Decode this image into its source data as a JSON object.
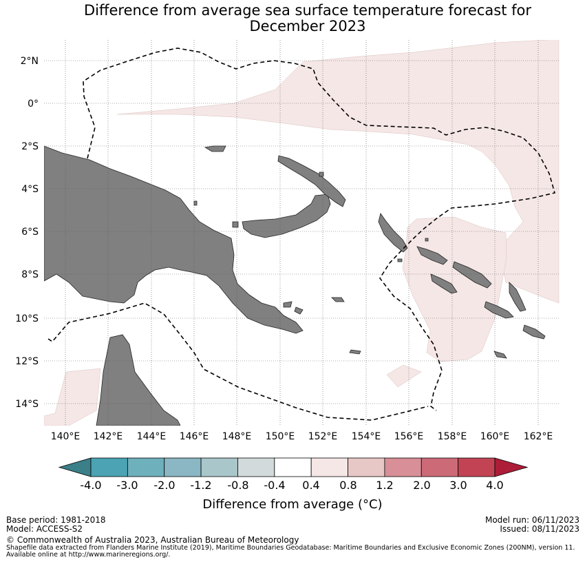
{
  "title": {
    "line1": "Difference from average sea surface temperature forecast for",
    "line2": "December 2023"
  },
  "map": {
    "lat_labels": [
      "2°N",
      "0°",
      "2°S",
      "4°S",
      "6°S",
      "8°S",
      "10°S",
      "12°S",
      "14°S"
    ],
    "lon_labels": [
      "140°E",
      "142°E",
      "144°E",
      "146°E",
      "148°E",
      "150°E",
      "152°E",
      "154°E",
      "156°E",
      "158°E",
      "160°E",
      "162°E"
    ],
    "colors": {
      "land": "#808080",
      "warm_anomaly": "#f5e7e6",
      "boundary": "#000000"
    }
  },
  "colorbar": {
    "ticks": [
      "-4.0",
      "-3.0",
      "-2.0",
      "-1.2",
      "-0.8",
      "-0.4",
      "0.4",
      "0.8",
      "1.2",
      "2.0",
      "3.0",
      "4.0"
    ],
    "colors": [
      "#3b7f89",
      "#4ba3b3",
      "#6fb0bd",
      "#8ab7c3",
      "#a9c6ca",
      "#d2dadb",
      "#ffffff",
      "#f5e7e6",
      "#e8c8c6",
      "#d88f98",
      "#cc6b77",
      "#c24454",
      "#ad1d38"
    ],
    "label": "Difference from average (°C)"
  },
  "footer": {
    "base_period": "Base period: 1981-2018",
    "model": "Model: ACCESS-S2",
    "model_run": "Model run: 06/11/2023",
    "issued": "Issued: 08/11/2023",
    "copyright": "© Commonwealth of Australia 2023, Australian Bureau of Meteorology",
    "shapefile_line1": "Shapefile data extracted from Flanders Marine Institute (2019), Maritime Boundaries Geodatabase: Maritime Boundaries and Exclusive Economic Zones (200NM), version 11.",
    "shapefile_line2": "Available online at http://www.marineregions.org/."
  }
}
